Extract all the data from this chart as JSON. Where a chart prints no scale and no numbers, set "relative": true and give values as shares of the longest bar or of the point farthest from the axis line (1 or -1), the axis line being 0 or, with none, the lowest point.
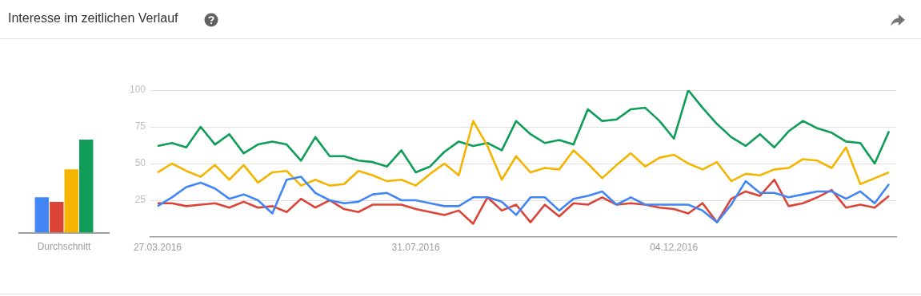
{
  "chart_data": [
    {
      "type": "bar",
      "relative": true,
      "categories": [
        "Durchschnitt"
      ],
      "series": [
        {
          "color": "#4285f4",
          "values": [
            0.38
          ]
        },
        {
          "color": "#db4437",
          "values": [
            0.33
          ]
        },
        {
          "color": "#f4b400",
          "values": [
            0.68
          ]
        },
        {
          "color": "#0f9d58",
          "values": [
            1
          ]
        }
      ]
    },
    {
      "type": "line",
      "title": "Interesse im zeitlichen Verlauf",
      "marker": "none",
      "grid": "y",
      "ylim": [
        0,
        100
      ],
      "yticks": [
        25,
        50,
        75,
        100
      ],
      "categories": [
        "27.03.2016",
        null,
        null,
        null,
        null,
        null,
        null,
        null,
        null,
        null,
        null,
        null,
        null,
        null,
        null,
        null,
        null,
        null,
        "31.07.2016",
        null,
        null,
        null,
        null,
        null,
        null,
        null,
        null,
        null,
        null,
        null,
        null,
        null,
        null,
        null,
        null,
        null,
        "04.12.2016",
        null,
        null,
        null,
        null,
        null,
        null,
        null,
        null,
        null,
        null,
        null,
        null,
        null,
        null,
        null
      ],
      "series": [
        {
          "color": "#4285f4",
          "values": [
            21,
            27,
            34,
            37,
            33,
            26,
            29,
            25,
            16,
            39,
            41,
            30,
            25,
            23,
            24,
            29,
            30,
            25,
            25,
            23,
            21,
            21,
            27,
            27,
            24,
            15,
            27,
            27,
            18,
            26,
            28,
            31,
            22,
            27,
            22,
            22,
            22,
            22,
            18,
            10,
            22,
            38,
            30,
            30,
            27,
            29,
            31,
            31,
            26,
            31,
            23,
            36
          ]
        },
        {
          "color": "#db4437",
          "values": [
            23,
            23,
            21,
            22,
            23,
            20,
            24,
            20,
            21,
            17,
            26,
            20,
            25,
            19,
            17,
            22,
            22,
            22,
            19,
            17,
            15,
            18,
            9,
            27,
            18,
            22,
            10,
            22,
            14,
            23,
            22,
            27,
            22,
            23,
            22,
            20,
            19,
            16,
            23,
            10,
            26,
            31,
            28,
            39,
            21,
            23,
            27,
            32,
            20,
            22,
            20,
            28
          ]
        },
        {
          "color": "#f4b400",
          "values": [
            44,
            50,
            45,
            41,
            49,
            39,
            49,
            37,
            44,
            45,
            35,
            39,
            35,
            36,
            45,
            42,
            38,
            39,
            35,
            43,
            50,
            42,
            79,
            62,
            39,
            55,
            44,
            47,
            46,
            59,
            50,
            40,
            49,
            57,
            48,
            54,
            56,
            50,
            46,
            51,
            38,
            43,
            42,
            46,
            47,
            53,
            52,
            47,
            61,
            36,
            40,
            44
          ]
        },
        {
          "color": "#0f9d58",
          "values": [
            62,
            64,
            61,
            75,
            63,
            70,
            57,
            63,
            65,
            63,
            52,
            68,
            55,
            55,
            52,
            51,
            48,
            59,
            44,
            48,
            58,
            65,
            62,
            64,
            59,
            79,
            70,
            64,
            66,
            63,
            87,
            79,
            80,
            87,
            88,
            79,
            67,
            100,
            88,
            77,
            68,
            62,
            70,
            61,
            72,
            79,
            74,
            71,
            65,
            64,
            50,
            72
          ]
        }
      ]
    }
  ]
}
